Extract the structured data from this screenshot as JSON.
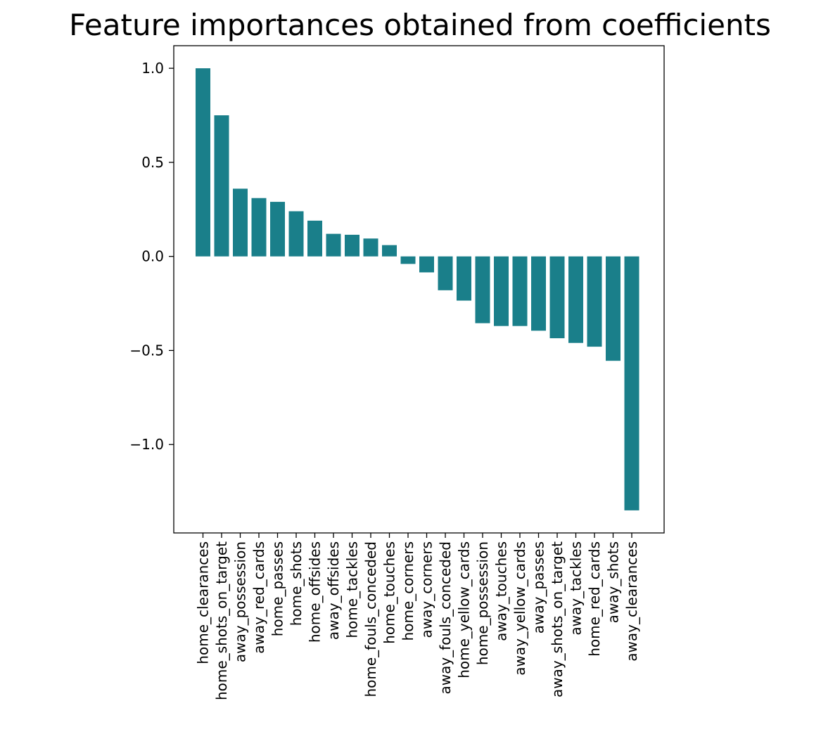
{
  "chart_data": {
    "type": "bar",
    "title": "Feature importances obtained from coefficients",
    "xlabel": "",
    "ylabel": "",
    "categories": [
      "home_clearances",
      "home_shots_on_target",
      "away_possession",
      "away_red_cards",
      "home_passes",
      "home_shots",
      "home_offsides",
      "away_offsides",
      "home_tackles",
      "home_fouls_conceded",
      "home_touches",
      "home_corners",
      "away_corners",
      "away_fouls_conceded",
      "home_yellow_cards",
      "home_possession",
      "away_touches",
      "away_yellow_cards",
      "away_passes",
      "away_shots_on_target",
      "away_tackles",
      "home_red_cards",
      "away_shots",
      "away_clearances"
    ],
    "values": [
      1.0,
      0.75,
      0.36,
      0.31,
      0.29,
      0.24,
      0.19,
      0.12,
      0.115,
      0.095,
      0.06,
      -0.04,
      -0.085,
      -0.18,
      -0.235,
      -0.355,
      -0.37,
      -0.37,
      -0.395,
      -0.435,
      -0.46,
      -0.48,
      -0.555,
      -1.35
    ],
    "ylim": [
      -1.47,
      1.12
    ],
    "yticks": [
      1.0,
      0.5,
      0.0,
      -0.5,
      -1.0
    ],
    "ytick_labels": [
      "1.0",
      "0.5",
      "0.0",
      "−0.5",
      "−1.0"
    ],
    "bar_color": "#1a7f8a",
    "grid": false,
    "legend": "none"
  }
}
